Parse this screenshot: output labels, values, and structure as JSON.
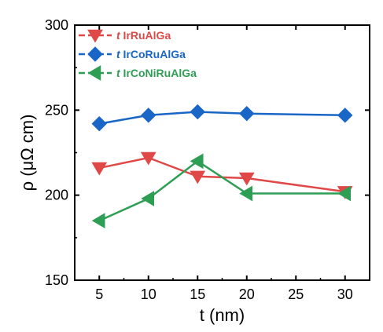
{
  "chart_data": {
    "type": "line",
    "xlabel": "t (nm)",
    "ylabel": "ρ (μΩ cm)",
    "xlim": [
      2.5,
      32.5
    ],
    "ylim": [
      150,
      300
    ],
    "xticks": [
      5,
      10,
      15,
      20,
      25,
      30
    ],
    "yticks": [
      150,
      200,
      250,
      300
    ],
    "grid": false,
    "legend_position": "top-left",
    "series": [
      {
        "name": "t IrRuAlGa",
        "color": "#e04848",
        "marker": "triangle-down",
        "x": [
          5,
          10,
          15,
          20,
          30
        ],
        "y": [
          216,
          222,
          211,
          210,
          202
        ]
      },
      {
        "name": "t IrCoRuAlGa",
        "color": "#1a66c6",
        "marker": "diamond",
        "x": [
          5,
          10,
          15,
          20,
          30
        ],
        "y": [
          242,
          247,
          249,
          248,
          247
        ]
      },
      {
        "name": "t IrCoNiRuAlGa",
        "color": "#2f9e55",
        "marker": "triangle-left",
        "x": [
          5,
          10,
          15,
          20,
          30
        ],
        "y": [
          185,
          198,
          220,
          201,
          201
        ]
      }
    ]
  }
}
